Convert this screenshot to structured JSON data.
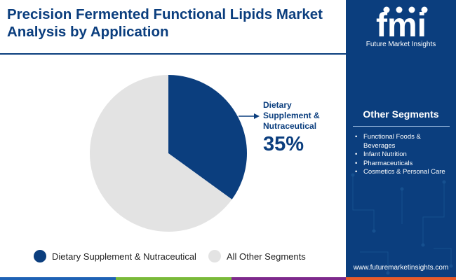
{
  "title_lines": [
    "Precision Fermented Functional Lipids Market",
    "Analysis by Application"
  ],
  "chart_data": {
    "type": "pie",
    "title": "Precision Fermented Functional Lipids Market Analysis by Application",
    "slices": [
      {
        "name": "Dietary Supplement & Nutraceutical",
        "value": 35,
        "color": "#0b3e7e"
      },
      {
        "name": "All Other Segments",
        "value": 65,
        "color": "#e3e3e3"
      }
    ],
    "callout": {
      "label": "Dietary Supplement & Nutraceutical",
      "value_text": "35%"
    },
    "legend_position": "bottom"
  },
  "legend": [
    {
      "label": "Dietary Supplement & Nutraceutical",
      "color": "#0b3e7e"
    },
    {
      "label": "All Other Segments",
      "color": "#e3e3e3"
    }
  ],
  "callout_lines": [
    "Dietary",
    "Supplement &",
    "Nutraceutical"
  ],
  "sidebar": {
    "logo_text": "fmi",
    "logo_subtitle": "Future Market Insights",
    "heading": "Other Segments",
    "items": [
      "Functional Foods & Beverages",
      "Infant Nutrition",
      "Pharmaceuticals",
      "Cosmetics & Personal Care"
    ],
    "url": "www.futuremarketinsights.com"
  },
  "colors": {
    "brand": "#0b3e7e",
    "other_segment": "#e3e3e3",
    "footer": [
      "#1f62b5",
      "#7aba3a",
      "#7e2a8c",
      "#e65a2a"
    ]
  }
}
